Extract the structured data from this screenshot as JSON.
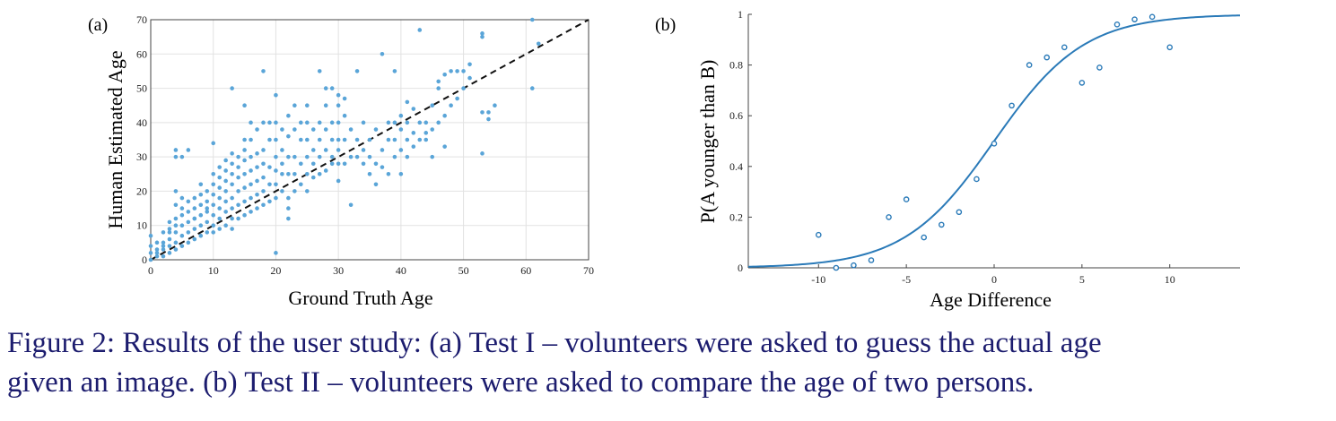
{
  "chart_data": [
    {
      "type": "scatter",
      "panel_label": "(a)",
      "xlabel": "Ground Truth Age",
      "ylabel": "Human Estimated Age",
      "xlim": [
        0,
        70
      ],
      "ylim": [
        0,
        70
      ],
      "xticks": [
        0,
        10,
        20,
        30,
        40,
        50,
        60,
        70
      ],
      "yticks": [
        0,
        10,
        20,
        30,
        40,
        50,
        60,
        70
      ],
      "grid": true,
      "reference_line": {
        "style": "dashed",
        "from": [
          0,
          0
        ],
        "to": [
          70,
          70
        ]
      },
      "point_color": "#5aa5d8",
      "points": [
        [
          0,
          0
        ],
        [
          0,
          2
        ],
        [
          0,
          4
        ],
        [
          0,
          7
        ],
        [
          1,
          1
        ],
        [
          1,
          3
        ],
        [
          1,
          5
        ],
        [
          1,
          2
        ],
        [
          2,
          1
        ],
        [
          2,
          3
        ],
        [
          2,
          5
        ],
        [
          2,
          8
        ],
        [
          2,
          4
        ],
        [
          3,
          2
        ],
        [
          3,
          4
        ],
        [
          3,
          6
        ],
        [
          3,
          9
        ],
        [
          3,
          11
        ],
        [
          3,
          8
        ],
        [
          4,
          3
        ],
        [
          4,
          5
        ],
        [
          4,
          8
        ],
        [
          4,
          10
        ],
        [
          4,
          12
        ],
        [
          4,
          16
        ],
        [
          4,
          20
        ],
        [
          4,
          30
        ],
        [
          4,
          32
        ],
        [
          5,
          4
        ],
        [
          5,
          7
        ],
        [
          5,
          10
        ],
        [
          5,
          13
        ],
        [
          5,
          15
        ],
        [
          5,
          18
        ],
        [
          5,
          30
        ],
        [
          6,
          5
        ],
        [
          6,
          8
        ],
        [
          6,
          11
        ],
        [
          6,
          14
        ],
        [
          6,
          17
        ],
        [
          6,
          32
        ],
        [
          7,
          6
        ],
        [
          7,
          9
        ],
        [
          7,
          12
        ],
        [
          7,
          15
        ],
        [
          7,
          18
        ],
        [
          7,
          12
        ],
        [
          8,
          7
        ],
        [
          8,
          10
        ],
        [
          8,
          13
        ],
        [
          8,
          16
        ],
        [
          8,
          19
        ],
        [
          8,
          22
        ],
        [
          9,
          8
        ],
        [
          9,
          11
        ],
        [
          9,
          14
        ],
        [
          9,
          17
        ],
        [
          9,
          20
        ],
        [
          9,
          15
        ],
        [
          10,
          8
        ],
        [
          10,
          10
        ],
        [
          10,
          13
        ],
        [
          10,
          16
        ],
        [
          10,
          19
        ],
        [
          10,
          22
        ],
        [
          10,
          25
        ],
        [
          10,
          34
        ],
        [
          11,
          9
        ],
        [
          11,
          12
        ],
        [
          11,
          15
        ],
        [
          11,
          18
        ],
        [
          11,
          21
        ],
        [
          11,
          24
        ],
        [
          11,
          27
        ],
        [
          12,
          10
        ],
        [
          12,
          14
        ],
        [
          12,
          17
        ],
        [
          12,
          20
        ],
        [
          12,
          23
        ],
        [
          12,
          26
        ],
        [
          12,
          29
        ],
        [
          13,
          9
        ],
        [
          13,
          12
        ],
        [
          13,
          15
        ],
        [
          13,
          18
        ],
        [
          13,
          22
        ],
        [
          13,
          25
        ],
        [
          13,
          28
        ],
        [
          13,
          31
        ],
        [
          13,
          50
        ],
        [
          14,
          12
        ],
        [
          14,
          16
        ],
        [
          14,
          20
        ],
        [
          14,
          24
        ],
        [
          14,
          27
        ],
        [
          14,
          30
        ],
        [
          15,
          13
        ],
        [
          15,
          17
        ],
        [
          15,
          21
        ],
        [
          15,
          25
        ],
        [
          15,
          29
        ],
        [
          15,
          32
        ],
        [
          15,
          35
        ],
        [
          15,
          45
        ],
        [
          16,
          14
        ],
        [
          16,
          18
        ],
        [
          16,
          22
        ],
        [
          16,
          26
        ],
        [
          16,
          30
        ],
        [
          16,
          35
        ],
        [
          16,
          40
        ],
        [
          17,
          15
        ],
        [
          17,
          19
        ],
        [
          17,
          23
        ],
        [
          17,
          27
        ],
        [
          17,
          31
        ],
        [
          17,
          38
        ],
        [
          18,
          16
        ],
        [
          18,
          20
        ],
        [
          18,
          24
        ],
        [
          18,
          28
        ],
        [
          18,
          32
        ],
        [
          18,
          40
        ],
        [
          18,
          55
        ],
        [
          19,
          17
        ],
        [
          19,
          22
        ],
        [
          19,
          27
        ],
        [
          19,
          35
        ],
        [
          19,
          40
        ],
        [
          20,
          18
        ],
        [
          20,
          22
        ],
        [
          20,
          26
        ],
        [
          20,
          30
        ],
        [
          20,
          35
        ],
        [
          20,
          40
        ],
        [
          20,
          48
        ],
        [
          20,
          2
        ],
        [
          21,
          20
        ],
        [
          21,
          25
        ],
        [
          21,
          28
        ],
        [
          21,
          32
        ],
        [
          21,
          38
        ],
        [
          22,
          12
        ],
        [
          22,
          15
        ],
        [
          22,
          18
        ],
        [
          22,
          25
        ],
        [
          22,
          30
        ],
        [
          22,
          36
        ],
        [
          22,
          42
        ],
        [
          23,
          20
        ],
        [
          23,
          25
        ],
        [
          23,
          30
        ],
        [
          23,
          38
        ],
        [
          23,
          45
        ],
        [
          24,
          22
        ],
        [
          24,
          28
        ],
        [
          24,
          35
        ],
        [
          24,
          40
        ],
        [
          25,
          20
        ],
        [
          25,
          25
        ],
        [
          25,
          30
        ],
        [
          25,
          35
        ],
        [
          25,
          40
        ],
        [
          25,
          45
        ],
        [
          26,
          24
        ],
        [
          26,
          28
        ],
        [
          26,
          32
        ],
        [
          26,
          38
        ],
        [
          27,
          25
        ],
        [
          27,
          30
        ],
        [
          27,
          35
        ],
        [
          27,
          40
        ],
        [
          27,
          55
        ],
        [
          28,
          26
        ],
        [
          28,
          32
        ],
        [
          28,
          38
        ],
        [
          28,
          45
        ],
        [
          28,
          50
        ],
        [
          29,
          28
        ],
        [
          29,
          30
        ],
        [
          29,
          35
        ],
        [
          29,
          40
        ],
        [
          29,
          50
        ],
        [
          30,
          23
        ],
        [
          30,
          28
        ],
        [
          30,
          32
        ],
        [
          30,
          35
        ],
        [
          30,
          40
        ],
        [
          30,
          45
        ],
        [
          30,
          48
        ],
        [
          31,
          28
        ],
        [
          31,
          35
        ],
        [
          31,
          42
        ],
        [
          31,
          47
        ],
        [
          32,
          16
        ],
        [
          32,
          30
        ],
        [
          32,
          38
        ],
        [
          33,
          30
        ],
        [
          33,
          35
        ],
        [
          33,
          55
        ],
        [
          34,
          28
        ],
        [
          34,
          32
        ],
        [
          34,
          40
        ],
        [
          35,
          30
        ],
        [
          35,
          35
        ],
        [
          35,
          25
        ],
        [
          36,
          22
        ],
        [
          36,
          28
        ],
        [
          36,
          38
        ],
        [
          37,
          27
        ],
        [
          37,
          32
        ],
        [
          37,
          60
        ],
        [
          38,
          25
        ],
        [
          38,
          35
        ],
        [
          38,
          40
        ],
        [
          39,
          30
        ],
        [
          39,
          35
        ],
        [
          39,
          40
        ],
        [
          39,
          55
        ],
        [
          40,
          25
        ],
        [
          40,
          32
        ],
        [
          40,
          38
        ],
        [
          40,
          42
        ],
        [
          41,
          30
        ],
        [
          41,
          35
        ],
        [
          41,
          40
        ],
        [
          41,
          46
        ],
        [
          42,
          33
        ],
        [
          42,
          37
        ],
        [
          42,
          44
        ],
        [
          43,
          35
        ],
        [
          43,
          40
        ],
        [
          43,
          67
        ],
        [
          44,
          37
        ],
        [
          44,
          40
        ],
        [
          44,
          35
        ],
        [
          45,
          38
        ],
        [
          45,
          30
        ],
        [
          45,
          45
        ],
        [
          46,
          40
        ],
        [
          46,
          50
        ],
        [
          46,
          52
        ],
        [
          47,
          42
        ],
        [
          47,
          33
        ],
        [
          47,
          54
        ],
        [
          48,
          45
        ],
        [
          48,
          55
        ],
        [
          49,
          47
        ],
        [
          49,
          55
        ],
        [
          50,
          50
        ],
        [
          50,
          55
        ],
        [
          51,
          53
        ],
        [
          51,
          57
        ],
        [
          53,
          31
        ],
        [
          53,
          43
        ],
        [
          53,
          65
        ],
        [
          53,
          66
        ],
        [
          54,
          41
        ],
        [
          54,
          43
        ],
        [
          55,
          45
        ],
        [
          61,
          50
        ],
        [
          61,
          70
        ],
        [
          62,
          63
        ]
      ]
    },
    {
      "type": "scatter",
      "panel_label": "(b)",
      "xlabel": "Age Difference",
      "ylabel": "P(A younger than B)",
      "xlim": [
        -14,
        14
      ],
      "ylim": [
        0,
        1
      ],
      "xticks": [
        -10,
        -5,
        0,
        5,
        10
      ],
      "yticks": [
        0,
        0.2,
        0.4,
        0.6,
        0.8,
        1
      ],
      "grid": false,
      "line_color": "#2a7ab8",
      "fitted_curve": {
        "type": "logistic",
        "midpoint": 0,
        "slope": 0.39
      },
      "points": [
        {
          "x": -10,
          "y": 0.13
        },
        {
          "x": -9,
          "y": 0.0
        },
        {
          "x": -8,
          "y": 0.01
        },
        {
          "x": -7,
          "y": 0.03
        },
        {
          "x": -6,
          "y": 0.2
        },
        {
          "x": -5,
          "y": 0.27
        },
        {
          "x": -4,
          "y": 0.12
        },
        {
          "x": -3,
          "y": 0.17
        },
        {
          "x": -2,
          "y": 0.22
        },
        {
          "x": -1,
          "y": 0.35
        },
        {
          "x": 0,
          "y": 0.49
        },
        {
          "x": 1,
          "y": 0.64
        },
        {
          "x": 2,
          "y": 0.8
        },
        {
          "x": 3,
          "y": 0.83
        },
        {
          "x": 4,
          "y": 0.87
        },
        {
          "x": 5,
          "y": 0.73
        },
        {
          "x": 6,
          "y": 0.79
        },
        {
          "x": 7,
          "y": 0.96
        },
        {
          "x": 8,
          "y": 0.98
        },
        {
          "x": 9,
          "y": 0.99
        },
        {
          "x": 10,
          "y": 0.87
        }
      ]
    }
  ],
  "caption": {
    "line1": "Figure 2: Results of the user study: (a) Test I – volunteers were asked to guess the actual age",
    "line2": "given an image. (b) Test II – volunteers were asked to compare the age of two persons."
  }
}
